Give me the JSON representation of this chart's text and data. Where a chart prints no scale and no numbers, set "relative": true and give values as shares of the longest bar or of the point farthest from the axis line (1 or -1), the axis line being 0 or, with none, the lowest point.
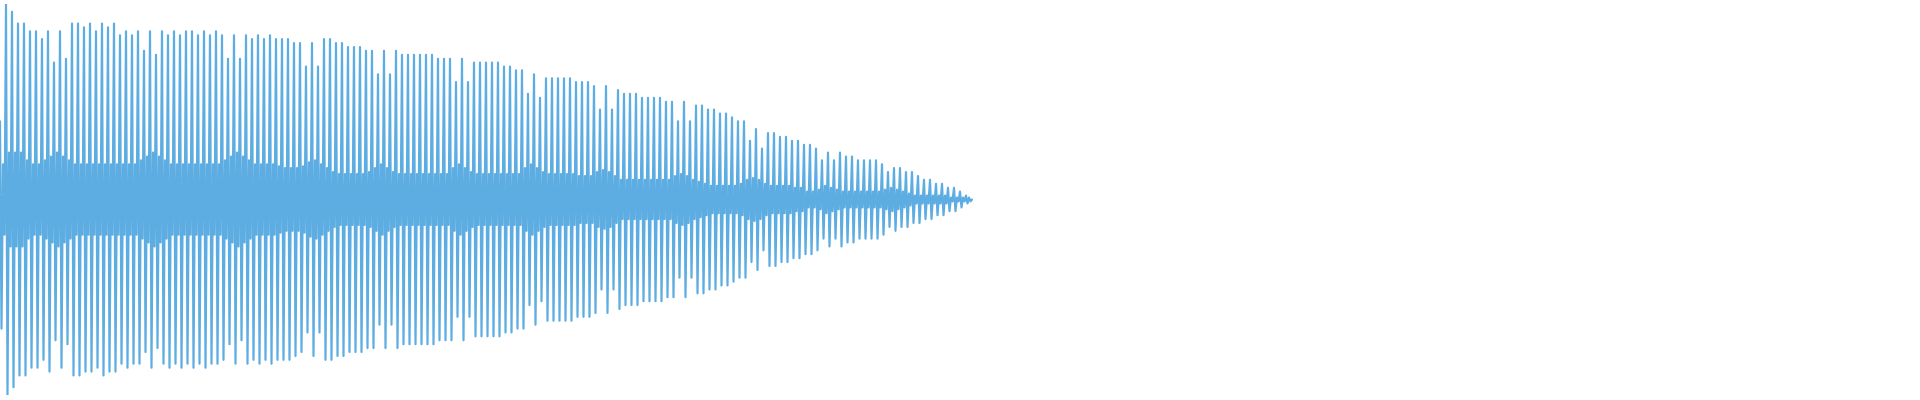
{
  "chart_data": {
    "type": "line",
    "relative": true,
    "color": "#5dade2",
    "categories": [
      null,
      null,
      null,
      null,
      null,
      null,
      null,
      null,
      null,
      null,
      null,
      null,
      null,
      null,
      null,
      null,
      null,
      null,
      null,
      null,
      null,
      null,
      null,
      null,
      null,
      null,
      null,
      null,
      null,
      null,
      null,
      null,
      null,
      null,
      null,
      null,
      null,
      null,
      null,
      null,
      null,
      null,
      null,
      null,
      null,
      null,
      null,
      null,
      null,
      null,
      null,
      null,
      null,
      null,
      null,
      null,
      null,
      null,
      null,
      null,
      null,
      null,
      null,
      null,
      null,
      null,
      null,
      null,
      null,
      null,
      null,
      null,
      null,
      null,
      null,
      null,
      null,
      null,
      null,
      null,
      null,
      null,
      null,
      null,
      null,
      null,
      null,
      null,
      null,
      null,
      null,
      null,
      null,
      null,
      null,
      null,
      null,
      null,
      null,
      null,
      null,
      null,
      null,
      null,
      null,
      null,
      null,
      null,
      null,
      null,
      null,
      null,
      null,
      null,
      null,
      null,
      null,
      null,
      null,
      null,
      null,
      null,
      null,
      null,
      null,
      null,
      null,
      null,
      null,
      null,
      null,
      null,
      null,
      null,
      null,
      null,
      null,
      null,
      null,
      null,
      null,
      null,
      null,
      null,
      null,
      null,
      null,
      null,
      null,
      null,
      null,
      null,
      null,
      null,
      null,
      null,
      null,
      null,
      null,
      null,
      null,
      null,
      null,
      null,
      null,
      null,
      null,
      null,
      null,
      null,
      null,
      null,
      null,
      null,
      null,
      null,
      null,
      null,
      null,
      null,
      null,
      null,
      null,
      null,
      null,
      null,
      null,
      null,
      null,
      null,
      null,
      null,
      null,
      null,
      null,
      null,
      null,
      null,
      null,
      null,
      null,
      null,
      null,
      null,
      null,
      null,
      null,
      null,
      null,
      null,
      null,
      null,
      null,
      null,
      null,
      null,
      null,
      null,
      null,
      null,
      null,
      null,
      null,
      null,
      null,
      null,
      null,
      null,
      null,
      null,
      null,
      null,
      null,
      null,
      null,
      null,
      null,
      null,
      null,
      null,
      null,
      null,
      null,
      null,
      null,
      null,
      null,
      null,
      null,
      null,
      null,
      null,
      null,
      null,
      null,
      null,
      null,
      null,
      null,
      null,
      null,
      null,
      null,
      null,
      null,
      null,
      null,
      null,
      null,
      null,
      null,
      null,
      null,
      null,
      null,
      null,
      null,
      null,
      null,
      null,
      null,
      null,
      null,
      null,
      null,
      null,
      null,
      null,
      null,
      null,
      null,
      null,
      null,
      null,
      null,
      null,
      null,
      null,
      null,
      null,
      null,
      null,
      null,
      null,
      null,
      null,
      null,
      null,
      null,
      null,
      null,
      null,
      null,
      null,
      null,
      null,
      null,
      null,
      null,
      null,
      null,
      null,
      null,
      null,
      null,
      null,
      null,
      null,
      null,
      null,
      null,
      null,
      null,
      null,
      null,
      null,
      null,
      null,
      null,
      null,
      null,
      null,
      null,
      null,
      null,
      null,
      null,
      null,
      null,
      null,
      null,
      null,
      null,
      null,
      null,
      null,
      null,
      null,
      null,
      null,
      null,
      null,
      null,
      null,
      null,
      null,
      null,
      null,
      null,
      null,
      null,
      null,
      null,
      null,
      null,
      null,
      null,
      null,
      null,
      null,
      null,
      null,
      null,
      null,
      null,
      null,
      null,
      null,
      null,
      null,
      null,
      null,
      null,
      null,
      null,
      null,
      null,
      null,
      null,
      null,
      null,
      null,
      null,
      null,
      null,
      null,
      null,
      null,
      null,
      null,
      null,
      null,
      null,
      null,
      null,
      null,
      null,
      null,
      null,
      null,
      null,
      null,
      null,
      null,
      null,
      null,
      null,
      null,
      null,
      null,
      null,
      null,
      null,
      null,
      null,
      null,
      null,
      null,
      null,
      null,
      null,
      null,
      null,
      null,
      null,
      null,
      null,
      null,
      null,
      null,
      null,
      null,
      null,
      null,
      null,
      null,
      null,
      null,
      null,
      null,
      null,
      null,
      null,
      null,
      null,
      null,
      null,
      null,
      null,
      null,
      null,
      null,
      null,
      null,
      null,
      null,
      null,
      null,
      null,
      null,
      null,
      null,
      null,
      null,
      null,
      null,
      null,
      null,
      null,
      null,
      null,
      null,
      null,
      null,
      null,
      null,
      null,
      null,
      null,
      null,
      null,
      null,
      null,
      null,
      null,
      null,
      null,
      null,
      null,
      null,
      null,
      null,
      null,
      null,
      null,
      null,
      null,
      null,
      null,
      null,
      null,
      null,
      null,
      null,
      null,
      null,
      null,
      null,
      null,
      null,
      null,
      null,
      null,
      null,
      null,
      null,
      null,
      null,
      null,
      null,
      null,
      null,
      null,
      null,
      null,
      null,
      null,
      null,
      null,
      null,
      null,
      null,
      null,
      null,
      null,
      null,
      null,
      null,
      null,
      null,
      null,
      null,
      null,
      null,
      null,
      null,
      null,
      null,
      null,
      null,
      null,
      null,
      null,
      null,
      null,
      null,
      null,
      null,
      null,
      null,
      null,
      null,
      null,
      null,
      null,
      null,
      null,
      null,
      null,
      null,
      null,
      null,
      null,
      null,
      null,
      null,
      null,
      null,
      null,
      null,
      null,
      null,
      null,
      null,
      null,
      null,
      null,
      null,
      null,
      null,
      null,
      null,
      null,
      null,
      null,
      null,
      null,
      null,
      null,
      null,
      null,
      null,
      null,
      null,
      null,
      null,
      null,
      null,
      null,
      null,
      null,
      null,
      null,
      null,
      null,
      null,
      null,
      null,
      null,
      null,
      null,
      null,
      null,
      null,
      null,
      null,
      null,
      null,
      null,
      null,
      null,
      null,
      null,
      null,
      null,
      null,
      null,
      null,
      null,
      null,
      null,
      null,
      null,
      null,
      null,
      null,
      null,
      null,
      null,
      null,
      null,
      null,
      null,
      null,
      null,
      null,
      null,
      null,
      null,
      null,
      null,
      null,
      null,
      null,
      null,
      null,
      null,
      null,
      null,
      null,
      null,
      null,
      null,
      null,
      null,
      null,
      null,
      null,
      null,
      null,
      null,
      null,
      null,
      null,
      null,
      null,
      null,
      null,
      null,
      null,
      null,
      null,
      null,
      null,
      null,
      null,
      null,
      null,
      null,
      null,
      null,
      null,
      null,
      null,
      null,
      null,
      null,
      null,
      null,
      null,
      null,
      null,
      null,
      null,
      null,
      null,
      null,
      null,
      null,
      null,
      null,
      null,
      null,
      null,
      null,
      null,
      null,
      null,
      null,
      null,
      null,
      null,
      null,
      null,
      null,
      null,
      null,
      null,
      null,
      null,
      null,
      null,
      null,
      null,
      null,
      null,
      null,
      null,
      null,
      null,
      null,
      null,
      null,
      null,
      null,
      null,
      null,
      null,
      null,
      null,
      null,
      null,
      null,
      null,
      null,
      null,
      null,
      null,
      null,
      null,
      null,
      null,
      null,
      null,
      null,
      null,
      null,
      null,
      null,
      null,
      null,
      null,
      null,
      null,
      null,
      null,
      null,
      null,
      null,
      null,
      null,
      null,
      null,
      null,
      null,
      null,
      null,
      null,
      null,
      null,
      null,
      null,
      null,
      null,
      null,
      null,
      null,
      null,
      null,
      null,
      null,
      null,
      null,
      null,
      null,
      null,
      null,
      null,
      null,
      null,
      null,
      null,
      null,
      null,
      null,
      null,
      null,
      null,
      null,
      null,
      null,
      null,
      null,
      null,
      null,
      null,
      null,
      null,
      null,
      null,
      null,
      null,
      null,
      null,
      null,
      null,
      null,
      null,
      null,
      null,
      null,
      null,
      null,
      null,
      null,
      null,
      null,
      null,
      null,
      null,
      null,
      null,
      null,
      null,
      null,
      null,
      null,
      null,
      null,
      null,
      null,
      null,
      null,
      null,
      null,
      null,
      null,
      null,
      null,
      null,
      null,
      null,
      null,
      null,
      null,
      null,
      null,
      null,
      null,
      null,
      null,
      null,
      null,
      null,
      null,
      null,
      null,
      null,
      null,
      null,
      null,
      null,
      null,
      null,
      null,
      null,
      null,
      null,
      null,
      null,
      null,
      null,
      null,
      null,
      null,
      null,
      null,
      null,
      null,
      null,
      null,
      null,
      null,
      null,
      null,
      null,
      null,
      null,
      null,
      null,
      null,
      null,
      null,
      null,
      null,
      null,
      null,
      null,
      null,
      null,
      null,
      null,
      null,
      null,
      null,
      null,
      null,
      null,
      null,
      null,
      null,
      null,
      null,
      null,
      null,
      null,
      null,
      null,
      null,
      null,
      null,
      null,
      null,
      null,
      null,
      null,
      null,
      null,
      null,
      null,
      null,
      null,
      null,
      null,
      null,
      null,
      null,
      null,
      null,
      null,
      null,
      null,
      null,
      null,
      null,
      null,
      null,
      null,
      null,
      null,
      null,
      null,
      null,
      null,
      null,
      null,
      null,
      null,
      null,
      null,
      null,
      null,
      null,
      null,
      null,
      null,
      null,
      null,
      null,
      null,
      null,
      null,
      null,
      null,
      null,
      null,
      null,
      null,
      null,
      null,
      null,
      null,
      null,
      null,
      null,
      null,
      null,
      null,
      null,
      null,
      null,
      null,
      null,
      null,
      null,
      null,
      null,
      null,
      null,
      null,
      null,
      null,
      null,
      null,
      null,
      null,
      null,
      null,
      null,
      null,
      null,
      null,
      null,
      null,
      null,
      null,
      null,
      null,
      null,
      null,
      null,
      null,
      null,
      null,
      null,
      null,
      null,
      null,
      null,
      null,
      null,
      null,
      null,
      null,
      null,
      null,
      null,
      null,
      null,
      null,
      null,
      null,
      null,
      null,
      null,
      null,
      null,
      null,
      null,
      null,
      null,
      null,
      null,
      null,
      null,
      null,
      null,
      null,
      null,
      null,
      null,
      null,
      null,
      null,
      null,
      null,
      null,
      null,
      null,
      null,
      null,
      null,
      null,
      null,
      null,
      null,
      null,
      null,
      null,
      null,
      null,
      null,
      null,
      null,
      null,
      null,
      null,
      null,
      null,
      null,
      null,
      null,
      null,
      null,
      null,
      null,
      null,
      null,
      null,
      null,
      null,
      null,
      null,
      null,
      null,
      null,
      null,
      null,
      null,
      null,
      null,
      null,
      null,
      null,
      null,
      null,
      null,
      null,
      null,
      null,
      null,
      null,
      null,
      null,
      null,
      null,
      null,
      null,
      null,
      null,
      null,
      null,
      null,
      null,
      null,
      null,
      null,
      null,
      null,
      null,
      null,
      null,
      null,
      null,
      null,
      null,
      null,
      null,
      null,
      null,
      null,
      null,
      null,
      null,
      null,
      null,
      null,
      null,
      null,
      null,
      null,
      null,
      null,
      null,
      null,
      null,
      null,
      null,
      null,
      null,
      null,
      null,
      null,
      null,
      null,
      null,
      null,
      null,
      null,
      null,
      null,
      null,
      null,
      null,
      null,
      null,
      null,
      null,
      null,
      null,
      null,
      null,
      null,
      null,
      null,
      null,
      null,
      null,
      null,
      null,
      null,
      null,
      null,
      null,
      null,
      null,
      null,
      null,
      null,
      null,
      null,
      null,
      null,
      null,
      null,
      null,
      null,
      null,
      null,
      null,
      null
    ],
    "values": [
      0.7,
      0.17,
      0.59,
      0.41,
      1,
      0,
      0.62,
      0.38,
      0.98,
      0.02,
      0.62,
      0.38,
      0.95,
      0.05,
      0.62,
      0.38,
      0.95,
      0.05,
      0.6,
      0.4,
      0.93,
      0.07,
      0.59,
      0.41,
      0.93,
      0.07,
      0.59,
      0.41,
      0.91,
      0.09,
      0.6,
      0.4,
      0.93,
      0.06,
      0.61,
      0.39,
      0.85,
      0.14,
      0.62,
      0.38,
      0.93,
      0.07,
      0.61,
      0.39,
      0.86,
      0.13,
      0.6,
      0.4,
      0.95,
      0.05,
      0.59,
      0.41,
      0.95,
      0.05,
      0.59,
      0.41,
      0.94,
      0.06,
      0.59,
      0.41,
      0.95,
      0.06,
      0.59,
      0.41,
      0.93,
      0.07,
      0.59,
      0.41,
      0.95,
      0.05,
      0.59,
      0.41,
      0.94,
      0.06,
      0.59,
      0.41,
      0.95,
      0.06,
      0.59,
      0.41,
      0.92,
      0.08,
      0.59,
      0.41,
      0.93,
      0.07,
      0.59,
      0.41,
      0.92,
      0.08,
      0.59,
      0.41,
      0.93,
      0.08,
      0.6,
      0.4,
      0.88,
      0.11,
      0.61,
      0.39,
      0.93,
      0.07,
      0.62,
      0.38,
      0.87,
      0.12,
      0.61,
      0.39,
      0.93,
      0.08,
      0.6,
      0.4,
      0.92,
      0.07,
      0.59,
      0.41,
      0.93,
      0.08,
      0.59,
      0.41,
      0.92,
      0.07,
      0.59,
      0.41,
      0.93,
      0.08,
      0.59,
      0.41,
      0.93,
      0.07,
      0.59,
      0.41,
      0.92,
      0.08,
      0.59,
      0.41,
      0.93,
      0.07,
      0.59,
      0.41,
      0.92,
      0.08,
      0.59,
      0.41,
      0.93,
      0.08,
      0.59,
      0.41,
      0.92,
      0.09,
      0.6,
      0.4,
      0.86,
      0.13,
      0.61,
      0.39,
      0.92,
      0.08,
      0.62,
      0.38,
      0.86,
      0.14,
      0.61,
      0.39,
      0.92,
      0.08,
      0.6,
      0.4,
      0.91,
      0.09,
      0.59,
      0.41,
      0.92,
      0.08,
      0.59,
      0.41,
      0.91,
      0.09,
      0.59,
      0.41,
      0.92,
      0.08,
      0.59,
      0.41,
      0.91,
      0.09,
      0.585,
      0.415,
      0.91,
      0.09,
      0.58,
      0.42,
      0.91,
      0.09,
      0.58,
      0.42,
      0.9,
      0.1,
      0.58,
      0.42,
      0.9,
      0.11,
      0.585,
      0.415,
      0.84,
      0.16,
      0.595,
      0.405,
      0.9,
      0.1,
      0.6,
      0.4,
      0.84,
      0.16,
      0.59,
      0.41,
      0.91,
      0.09,
      0.58,
      0.42,
      0.91,
      0.09,
      0.57,
      0.43,
      0.9,
      0.1,
      0.565,
      0.435,
      0.9,
      0.1,
      0.565,
      0.435,
      0.89,
      0.11,
      0.565,
      0.435,
      0.89,
      0.11,
      0.565,
      0.435,
      0.89,
      0.11,
      0.565,
      0.435,
      0.88,
      0.12,
      0.57,
      0.43,
      0.88,
      0.12,
      0.58,
      0.42,
      0.82,
      0.18,
      0.59,
      0.41,
      0.88,
      0.12,
      0.58,
      0.42,
      0.82,
      0.18,
      0.57,
      0.43,
      0.88,
      0.12,
      0.565,
      0.435,
      0.87,
      0.13,
      0.565,
      0.435,
      0.87,
      0.13,
      0.565,
      0.435,
      0.87,
      0.13,
      0.565,
      0.435,
      0.87,
      0.13,
      0.565,
      0.435,
      0.87,
      0.13,
      0.565,
      0.435,
      0.87,
      0.13,
      0.565,
      0.435,
      0.86,
      0.14,
      0.565,
      0.435,
      0.86,
      0.14,
      0.565,
      0.435,
      0.86,
      0.14,
      0.58,
      0.42,
      0.8,
      0.2,
      0.59,
      0.41,
      0.86,
      0.14,
      0.58,
      0.42,
      0.8,
      0.2,
      0.57,
      0.43,
      0.85,
      0.15,
      0.565,
      0.435,
      0.85,
      0.15,
      0.565,
      0.435,
      0.85,
      0.15,
      0.565,
      0.435,
      0.85,
      0.15,
      0.565,
      0.435,
      0.85,
      0.15,
      0.565,
      0.435,
      0.84,
      0.16,
      0.565,
      0.435,
      0.84,
      0.16,
      0.565,
      0.435,
      0.83,
      0.17,
      0.565,
      0.435,
      0.83,
      0.17,
      0.58,
      0.42,
      0.77,
      0.23,
      0.59,
      0.41,
      0.82,
      0.18,
      0.58,
      0.42,
      0.76,
      0.24,
      0.57,
      0.43,
      0.81,
      0.19,
      0.565,
      0.435,
      0.81,
      0.19,
      0.565,
      0.435,
      0.81,
      0.19,
      0.565,
      0.435,
      0.81,
      0.19,
      0.565,
      0.435,
      0.81,
      0.19,
      0.565,
      0.435,
      0.8,
      0.2,
      0.56,
      0.44,
      0.8,
      0.2,
      0.56,
      0.44,
      0.8,
      0.2,
      0.56,
      0.44,
      0.79,
      0.21,
      0.57,
      0.43,
      0.73,
      0.27,
      0.575,
      0.425,
      0.79,
      0.21,
      0.57,
      0.43,
      0.73,
      0.27,
      0.56,
      0.44,
      0.78,
      0.22,
      0.55,
      0.45,
      0.77,
      0.23,
      0.55,
      0.45,
      0.77,
      0.23,
      0.55,
      0.45,
      0.77,
      0.23,
      0.55,
      0.45,
      0.76,
      0.24,
      0.55,
      0.45,
      0.76,
      0.24,
      0.55,
      0.45,
      0.76,
      0.24,
      0.55,
      0.45,
      0.76,
      0.24,
      0.55,
      0.45,
      0.75,
      0.25,
      0.55,
      0.45,
      0.75,
      0.25,
      0.56,
      0.44,
      0.7,
      0.3,
      0.565,
      0.435,
      0.75,
      0.25,
      0.56,
      0.44,
      0.7,
      0.3,
      0.55,
      0.45,
      0.74,
      0.26,
      0.545,
      0.455,
      0.74,
      0.26,
      0.54,
      0.46,
      0.73,
      0.27,
      0.535,
      0.465,
      0.73,
      0.27,
      0.535,
      0.465,
      0.72,
      0.28,
      0.535,
      0.465,
      0.72,
      0.28,
      0.535,
      0.465,
      0.71,
      0.29,
      0.535,
      0.465,
      0.7,
      0.3,
      0.54,
      0.46,
      0.7,
      0.3,
      0.55,
      0.45,
      0.65,
      0.34,
      0.555,
      0.445,
      0.68,
      0.32,
      0.55,
      0.45,
      0.63,
      0.37,
      0.54,
      0.46,
      0.67,
      0.33,
      0.535,
      0.465,
      0.67,
      0.33,
      0.535,
      0.465,
      0.66,
      0.34,
      0.535,
      0.465,
      0.66,
      0.34,
      0.535,
      0.465,
      0.65,
      0.35,
      0.53,
      0.47,
      0.65,
      0.35,
      0.53,
      0.47,
      0.64,
      0.36,
      0.52,
      0.48,
      0.64,
      0.36,
      0.52,
      0.48,
      0.63,
      0.37,
      0.525,
      0.475,
      0.6,
      0.4,
      0.535,
      0.465,
      0.62,
      0.38,
      0.53,
      0.47,
      0.6,
      0.4,
      0.525,
      0.475,
      0.62,
      0.38,
      0.52,
      0.48,
      0.61,
      0.39,
      0.52,
      0.48,
      0.61,
      0.39,
      0.52,
      0.48,
      0.6,
      0.4,
      0.52,
      0.48,
      0.6,
      0.4,
      0.52,
      0.48,
      0.6,
      0.4,
      0.52,
      0.48,
      0.6,
      0.4,
      0.52,
      0.48,
      0.59,
      0.41,
      0.525,
      0.475,
      0.57,
      0.43,
      0.53,
      0.47,
      0.58,
      0.42,
      0.525,
      0.475,
      0.58,
      0.43,
      0.52,
      0.48,
      0.57,
      0.43,
      0.515,
      0.485,
      0.57,
      0.44,
      0.51,
      0.49,
      0.56,
      0.44,
      0.51,
      0.49,
      0.55,
      0.45,
      0.51,
      0.49,
      0.55,
      0.45,
      0.51,
      0.49,
      0.54,
      0.46,
      0.51,
      0.49,
      0.54,
      0.46,
      0.51,
      0.49,
      0.53,
      0.47,
      0.505,
      0.495,
      0.53,
      0.47,
      0.505,
      0.495,
      0.52,
      0.48,
      0.505,
      0.495,
      0.51,
      0.49,
      0.505,
      0.495,
      0.5,
      null,
      null,
      null,
      null,
      null,
      null,
      null,
      null,
      null,
      null,
      null,
      null,
      null,
      null,
      null,
      null,
      null,
      null,
      null,
      null,
      null,
      null,
      null,
      null,
      null,
      null,
      null,
      null,
      null,
      null,
      null,
      null,
      null,
      null,
      null,
      null,
      null,
      null,
      null,
      null,
      null,
      null,
      null,
      null,
      null,
      null,
      null,
      null,
      null,
      null,
      null,
      null,
      null,
      null,
      null,
      null,
      null,
      null,
      null,
      null,
      null,
      null,
      null,
      null,
      null,
      null,
      null,
      null,
      null,
      null,
      null,
      null,
      null,
      null,
      null,
      null,
      null,
      null,
      null,
      null,
      null,
      null,
      null,
      null,
      null,
      null,
      null,
      null,
      null,
      null,
      null,
      null,
      null,
      null,
      null,
      null,
      null,
      null,
      null,
      null,
      null,
      null,
      null,
      null,
      null,
      null,
      null,
      null,
      null,
      null,
      null,
      null,
      null,
      null,
      null,
      null,
      null,
      null,
      null,
      null,
      null,
      null,
      null,
      null,
      null,
      null,
      null,
      null,
      null,
      null,
      null,
      null,
      null,
      null,
      null,
      null,
      null,
      null,
      null,
      null,
      null,
      null,
      null,
      null,
      null,
      null,
      null,
      null,
      null,
      null,
      null,
      null,
      null,
      null,
      null,
      null,
      null,
      null,
      null,
      null,
      null,
      null,
      null,
      null,
      null,
      null,
      null,
      null,
      null,
      null,
      null,
      null,
      null,
      null,
      null,
      null,
      null,
      null,
      null,
      null,
      null,
      null,
      null,
      null,
      null,
      null,
      null,
      null,
      null,
      null,
      null,
      null,
      null,
      null,
      null,
      null,
      null,
      null,
      null,
      null,
      null,
      null,
      null,
      null,
      null,
      null,
      null,
      null,
      null,
      null,
      null,
      null,
      null,
      null,
      null,
      null,
      null,
      null,
      null,
      null,
      null,
      null,
      null,
      null,
      null,
      null,
      null,
      null,
      null,
      null,
      null,
      null,
      null,
      null,
      null,
      null,
      null,
      null,
      null,
      null,
      null,
      null,
      null,
      null,
      null,
      null,
      null,
      null,
      null,
      null,
      null,
      null,
      null,
      null,
      null,
      null,
      null,
      null,
      null,
      null,
      null,
      null,
      null,
      null,
      null,
      null,
      null,
      null,
      null,
      null,
      null,
      null,
      null,
      null,
      null,
      null,
      null,
      null,
      null,
      null,
      null,
      null,
      null,
      null,
      null,
      null,
      null,
      null,
      null,
      null,
      null,
      null,
      null,
      null,
      null,
      null,
      null,
      null,
      null,
      null,
      null,
      null,
      null,
      null,
      null,
      null,
      null,
      null,
      null,
      null,
      null,
      null,
      null,
      null,
      null,
      null,
      null,
      null,
      null,
      null,
      null,
      null,
      null,
      null,
      null,
      null,
      null,
      null,
      null,
      null,
      null,
      null,
      null,
      null,
      null,
      null,
      null,
      null,
      null,
      null,
      null,
      null,
      null,
      null,
      null,
      null,
      null,
      null,
      null,
      null,
      null,
      null,
      null,
      null,
      null,
      null,
      null,
      null,
      null,
      null,
      null,
      null,
      null,
      null,
      null,
      null,
      null,
      null,
      null,
      null,
      null,
      null,
      null,
      null,
      null,
      null,
      null,
      null,
      null,
      null,
      null,
      null,
      null,
      null,
      null,
      null,
      null,
      null,
      null,
      null,
      null,
      null,
      null,
      null,
      null,
      null,
      null,
      null,
      null,
      null,
      null,
      null,
      null,
      null,
      null,
      null,
      null,
      null,
      null,
      null,
      null,
      null,
      null,
      null,
      null,
      null,
      null,
      null,
      null,
      null,
      null,
      null,
      null,
      null,
      null,
      null,
      null,
      null,
      null,
      null,
      null,
      null,
      null,
      null,
      null,
      null,
      null,
      null,
      null,
      null,
      null,
      null,
      null,
      null,
      null,
      null,
      null,
      null,
      null,
      null,
      null,
      null,
      null,
      null,
      null,
      null,
      null,
      null,
      null,
      null,
      null,
      null,
      null,
      null,
      null,
      null,
      null,
      null,
      null,
      null,
      null,
      null,
      null,
      null,
      null,
      null,
      null,
      null,
      null,
      null,
      null,
      null,
      null,
      null,
      null,
      null,
      null,
      null,
      null,
      null,
      null,
      null,
      null,
      null,
      null,
      null,
      null,
      null,
      null,
      null,
      null,
      null,
      null,
      null,
      null,
      null,
      null,
      null,
      null,
      null,
      null,
      null,
      null,
      null,
      null,
      null,
      null,
      null,
      null,
      null,
      null,
      null,
      null,
      null,
      null,
      null,
      null,
      null,
      null,
      null,
      null,
      null,
      null,
      null,
      null,
      null,
      null,
      null,
      null,
      null,
      null,
      null,
      null,
      null,
      null,
      null,
      null,
      null,
      null,
      null,
      null,
      null,
      null,
      null,
      null,
      null,
      null,
      null,
      null,
      null,
      null,
      null,
      null,
      null,
      null,
      null,
      null,
      null,
      null,
      null,
      null,
      null,
      null,
      null,
      null,
      null,
      null,
      null,
      null,
      null,
      null,
      null,
      null,
      null,
      null,
      null,
      null,
      null,
      null,
      null,
      null,
      null,
      null,
      null,
      null,
      null,
      null,
      null,
      null,
      null,
      null,
      null,
      null,
      null,
      null,
      null,
      null,
      null,
      null,
      null,
      null,
      null,
      null,
      null,
      null,
      null,
      null,
      null,
      null,
      null,
      null,
      null,
      null,
      null,
      null,
      null,
      null,
      null,
      null,
      null,
      null,
      null
    ]
  }
}
